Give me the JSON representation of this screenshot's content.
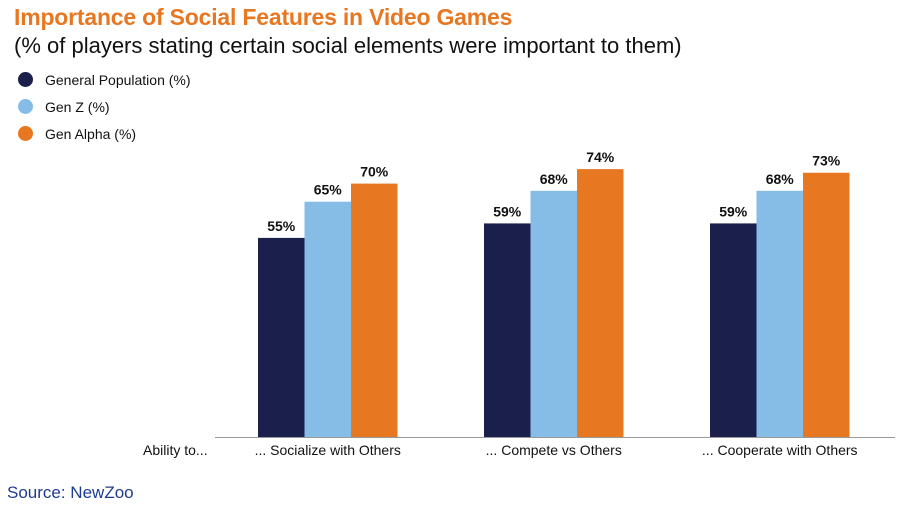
{
  "title": "Importance of Social Features in Video Games",
  "subtitle": "(% of players stating certain social elements were important to them)",
  "source": "Source: NewZoo",
  "axis_prefix": "Ability to...",
  "chart_data": {
    "type": "bar",
    "categories": [
      "... Socialize with Others",
      "... Compete vs Others",
      "... Cooperate with Others"
    ],
    "series": [
      {
        "name": "General Population (%)",
        "values": [
          55,
          59,
          59
        ],
        "color": "#1b1f4b"
      },
      {
        "name": "Gen Z (%)",
        "values": [
          65,
          68,
          68
        ],
        "color": "#85bde6"
      },
      {
        "name": "Gen Alpha (%)",
        "values": [
          70,
          74,
          73
        ],
        "color": "#e87722"
      }
    ],
    "value_suffix": "%",
    "ylim": [
      0,
      100
    ],
    "grid": false,
    "legend_position": "top-left"
  }
}
